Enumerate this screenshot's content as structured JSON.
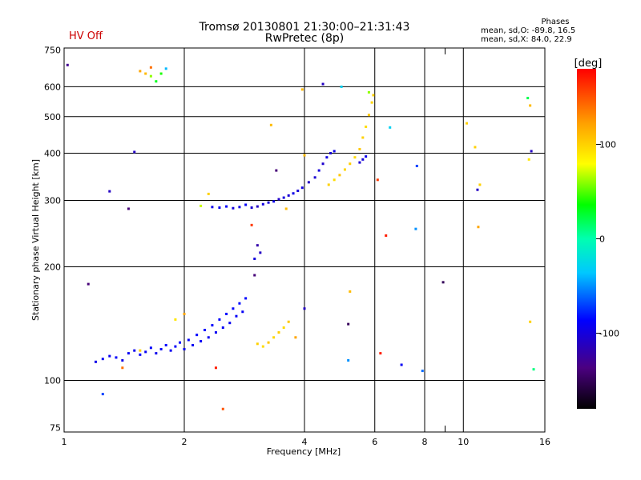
{
  "header": {
    "title": "Tromsø 20130801 21:30:00–21:31:43",
    "subtitle": "RwPretec (8p)",
    "status": "HV Off"
  },
  "stats": {
    "heading": "Phases",
    "line1": "mean, sd,O: -89.8, 16.5",
    "line2": "mean, sd,X:  84.0, 22.9"
  },
  "colorbar": {
    "label": "[deg]",
    "min": -180,
    "max": 180,
    "ticks": [
      100,
      0,
      -100
    ],
    "tick_labels": [
      "100",
      "0",
      "-100"
    ]
  },
  "chart_data": {
    "type": "scatter",
    "title": "Tromsø 20130801 21:30:00–21:31:43",
    "xlabel": "Frequency [MHz]",
    "ylabel": "Stationary phase Virtual Height [km]",
    "xscale": "log",
    "yscale": "log",
    "xlim": [
      1,
      16
    ],
    "ylim": [
      73,
      760
    ],
    "x_ticks": [
      1,
      2,
      4,
      6,
      8,
      10,
      16
    ],
    "x_tick_labels": [
      "1",
      "2",
      "4",
      "6",
      "8",
      "10",
      "16"
    ],
    "x_minor_ticks": [
      9
    ],
    "y_ticks": [
      75,
      100,
      200,
      300,
      400,
      500,
      600,
      750
    ],
    "y_tick_labels": [
      "75",
      "100",
      "200",
      "300",
      "400",
      "500",
      "600",
      "750"
    ],
    "grid": true,
    "color_value": "phase_deg",
    "series": [
      {
        "name": "O-mode lower trace",
        "points": [
          [
            1.2,
            112,
            -95
          ],
          [
            1.25,
            114,
            -90
          ],
          [
            1.3,
            116,
            -92
          ],
          [
            1.35,
            115,
            -88
          ],
          [
            1.4,
            113,
            -95
          ],
          [
            1.45,
            118,
            -90
          ],
          [
            1.5,
            120,
            -93
          ],
          [
            1.55,
            117,
            -88
          ],
          [
            1.6,
            119,
            -91
          ],
          [
            1.65,
            122,
            -87
          ],
          [
            1.7,
            118,
            -94
          ],
          [
            1.75,
            121,
            -90
          ],
          [
            1.8,
            124,
            -86
          ],
          [
            1.85,
            120,
            -92
          ],
          [
            1.9,
            123,
            -89
          ],
          [
            1.95,
            126,
            -85
          ],
          [
            2.0,
            121,
            -93
          ],
          [
            2.05,
            128,
            -88
          ],
          [
            2.1,
            124,
            -91
          ],
          [
            2.15,
            132,
            -86
          ],
          [
            2.2,
            127,
            -90
          ],
          [
            2.25,
            136,
            -84
          ],
          [
            2.3,
            130,
            -92
          ],
          [
            2.35,
            140,
            -87
          ],
          [
            2.4,
            134,
            -91
          ],
          [
            2.45,
            145,
            -86
          ],
          [
            2.5,
            138,
            -90
          ],
          [
            2.55,
            150,
            -85
          ],
          [
            2.6,
            142,
            -92
          ],
          [
            2.65,
            155,
            -86
          ],
          [
            2.7,
            148,
            -89
          ],
          [
            2.75,
            160,
            -84
          ],
          [
            2.8,
            152,
            -90
          ],
          [
            2.85,
            165,
            -86
          ]
        ]
      },
      {
        "name": "O-mode F trace",
        "points": [
          [
            2.35,
            288,
            -95
          ],
          [
            2.45,
            287,
            -92
          ],
          [
            2.55,
            289,
            -88
          ],
          [
            2.65,
            286,
            -100
          ],
          [
            2.75,
            288,
            -96
          ],
          [
            2.85,
            292,
            -90
          ],
          [
            2.95,
            287,
            -104
          ],
          [
            3.05,
            289,
            -110
          ],
          [
            3.15,
            293,
            -98
          ],
          [
            3.25,
            296,
            -102
          ],
          [
            3.35,
            298,
            -95
          ],
          [
            3.45,
            302,
            -108
          ],
          [
            3.55,
            305,
            -100
          ],
          [
            3.65,
            309,
            -104
          ],
          [
            3.75,
            313,
            -96
          ],
          [
            3.85,
            318,
            -102
          ],
          [
            3.95,
            324,
            -98
          ],
          [
            4.1,
            335,
            -110
          ],
          [
            4.25,
            345,
            -104
          ],
          [
            4.35,
            360,
            -100
          ],
          [
            4.45,
            375,
            -106
          ],
          [
            4.55,
            390,
            -98
          ],
          [
            4.65,
            400,
            -104
          ],
          [
            4.75,
            405,
            -96
          ],
          [
            5.6,
            385,
            -100
          ],
          [
            5.7,
            392,
            -95
          ],
          [
            5.5,
            378,
            -104
          ]
        ]
      },
      {
        "name": "X-mode traces",
        "points": [
          [
            3.05,
            125,
            100
          ],
          [
            3.15,
            123,
            95
          ],
          [
            3.25,
            126,
            105
          ],
          [
            3.35,
            130,
            98
          ],
          [
            3.45,
            134,
            102
          ],
          [
            3.55,
            138,
            96
          ],
          [
            3.65,
            143,
            104
          ],
          [
            4.6,
            330,
            100
          ],
          [
            4.75,
            340,
            95
          ],
          [
            4.9,
            350,
            105
          ],
          [
            5.05,
            362,
            98
          ],
          [
            5.2,
            375,
            102
          ],
          [
            5.35,
            390,
            96
          ],
          [
            5.5,
            410,
            104
          ],
          [
            5.6,
            440,
            100
          ],
          [
            5.7,
            470,
            95
          ],
          [
            5.8,
            505,
            105
          ],
          [
            5.9,
            545,
            98
          ],
          [
            5.95,
            570,
            102
          ],
          [
            1.55,
            660,
            120
          ],
          [
            1.6,
            650,
            110
          ],
          [
            1.65,
            640,
            60
          ],
          [
            1.75,
            650,
            40
          ],
          [
            1.8,
            670,
            -40
          ],
          [
            1.7,
            620,
            30
          ],
          [
            1.65,
            675,
            140
          ]
        ]
      },
      {
        "name": "Scattered echoes",
        "points": [
          [
            1.02,
            685,
            -130
          ],
          [
            1.15,
            180,
            -140
          ],
          [
            1.25,
            92,
            -70
          ],
          [
            1.4,
            108,
            140
          ],
          [
            1.3,
            317,
            -110
          ],
          [
            1.45,
            285,
            -140
          ],
          [
            1.5,
            403,
            -110
          ],
          [
            1.55,
            120,
            100
          ],
          [
            1.9,
            145,
            90
          ],
          [
            2.0,
            150,
            120
          ],
          [
            2.4,
            108,
            170
          ],
          [
            2.5,
            84,
            150
          ],
          [
            2.2,
            290,
            70
          ],
          [
            2.3,
            312,
            100
          ],
          [
            2.95,
            258,
            160
          ],
          [
            3.0,
            190,
            -140
          ],
          [
            3.05,
            228,
            -120
          ],
          [
            3.1,
            218,
            -110
          ],
          [
            3.0,
            210,
            -100
          ],
          [
            3.3,
            475,
            110
          ],
          [
            3.4,
            360,
            -140
          ],
          [
            3.6,
            285,
            110
          ],
          [
            3.8,
            130,
            120
          ],
          [
            3.95,
            590,
            110
          ],
          [
            4.0,
            395,
            110
          ],
          [
            4.0,
            155,
            -110
          ],
          [
            4.45,
            610,
            -110
          ],
          [
            4.95,
            600,
            -30
          ],
          [
            5.15,
            141,
            -150
          ],
          [
            5.15,
            113,
            -50
          ],
          [
            5.2,
            172,
            110
          ],
          [
            5.8,
            580,
            60
          ],
          [
            6.2,
            118,
            170
          ],
          [
            6.4,
            242,
            170
          ],
          [
            6.55,
            468,
            -30
          ],
          [
            7.0,
            110,
            -90
          ],
          [
            7.6,
            252,
            -50
          ],
          [
            7.65,
            370,
            -70
          ],
          [
            7.9,
            106,
            -60
          ],
          [
            8.9,
            182,
            -150
          ],
          [
            10.2,
            480,
            100
          ],
          [
            10.7,
            415,
            100
          ],
          [
            10.9,
            255,
            120
          ],
          [
            10.85,
            320,
            -110
          ],
          [
            11.0,
            330,
            100
          ],
          [
            14.5,
            560,
            20
          ],
          [
            14.7,
            535,
            110
          ],
          [
            14.8,
            405,
            -110
          ],
          [
            14.6,
            385,
            90
          ],
          [
            14.7,
            143,
            100
          ],
          [
            15.0,
            107,
            10
          ],
          [
            6.1,
            340,
            160
          ]
        ]
      }
    ]
  }
}
